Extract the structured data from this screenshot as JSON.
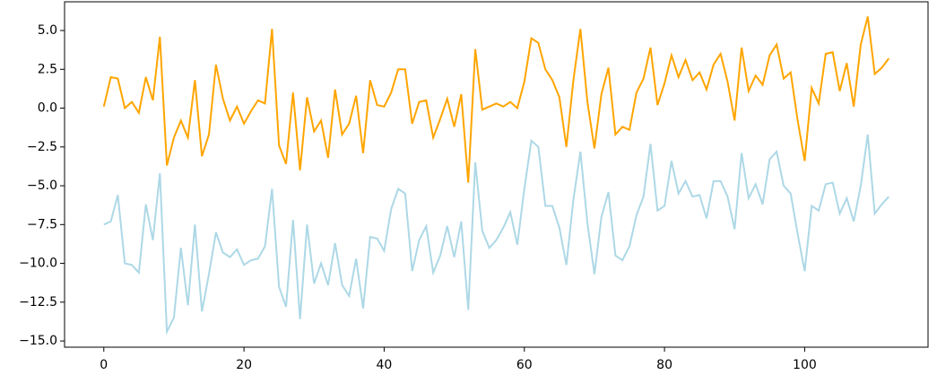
{
  "chart_data": {
    "type": "line",
    "x": [
      0,
      1,
      2,
      3,
      4,
      5,
      6,
      7,
      8,
      9,
      10,
      11,
      12,
      13,
      14,
      15,
      16,
      17,
      18,
      19,
      20,
      21,
      22,
      23,
      24,
      25,
      26,
      27,
      28,
      29,
      30,
      31,
      32,
      33,
      34,
      35,
      36,
      37,
      38,
      39,
      40,
      41,
      42,
      43,
      44,
      45,
      46,
      47,
      48,
      49,
      50,
      51,
      52,
      53,
      54,
      55,
      56,
      57,
      58,
      59,
      60,
      61,
      62,
      63,
      64,
      65,
      66,
      67,
      68,
      69,
      70,
      71,
      72,
      73,
      74,
      75,
      76,
      77,
      78,
      79,
      80,
      81,
      82,
      83,
      84,
      85,
      86,
      87,
      88,
      89,
      90,
      91,
      92,
      93,
      94,
      95,
      96,
      97,
      98,
      99,
      100,
      101,
      102,
      103,
      104,
      105,
      106,
      107,
      108,
      109,
      110,
      111,
      112
    ],
    "series": [
      {
        "color": "#ffa500",
        "values": [
          0.1,
          2.0,
          1.9,
          0.0,
          0.4,
          -0.3,
          2.0,
          0.5,
          4.6,
          -3.7,
          -1.9,
          -0.8,
          -1.9,
          1.8,
          -3.1,
          -1.7,
          2.8,
          0.6,
          -0.8,
          0.1,
          -1.0,
          -0.2,
          0.5,
          0.3,
          5.1,
          -2.4,
          -3.6,
          1.0,
          -4.0,
          0.7,
          -1.5,
          -0.8,
          -3.2,
          1.2,
          -1.7,
          -1.0,
          0.8,
          -2.9,
          1.8,
          0.2,
          0.1,
          1.0,
          2.5,
          2.5,
          -1.0,
          0.4,
          0.5,
          -1.9,
          -0.7,
          0.6,
          -1.2,
          0.9,
          -4.8,
          3.8,
          -0.1,
          0.1,
          0.3,
          0.1,
          0.4,
          0.0,
          1.7,
          4.5,
          4.2,
          2.5,
          1.8,
          0.7,
          -2.5,
          1.8,
          5.1,
          0.4,
          -2.6,
          0.9,
          2.6,
          -1.7,
          -1.2,
          -1.4,
          1.0,
          1.9,
          3.9,
          0.2,
          1.6,
          3.4,
          2.0,
          3.1,
          1.8,
          2.3,
          1.2,
          2.8,
          3.5,
          1.7,
          -0.8,
          3.9,
          1.1,
          2.1,
          1.5,
          3.4,
          4.1,
          1.9,
          2.3,
          -0.8,
          -3.4,
          1.3,
          0.3,
          3.5,
          3.6,
          1.1,
          2.9,
          0.1,
          4.1,
          5.9,
          2.2,
          2.6,
          3.2
        ]
      },
      {
        "color": "#add8e6",
        "values": [
          -7.5,
          -7.3,
          -5.6,
          -10.0,
          -10.1,
          -10.6,
          -6.2,
          -8.5,
          -4.2,
          -14.4,
          -13.5,
          -9.0,
          -12.7,
          -7.5,
          -13.1,
          -10.7,
          -8.0,
          -9.3,
          -9.6,
          -9.1,
          -10.1,
          -9.8,
          -9.7,
          -8.9,
          -5.2,
          -11.5,
          -12.8,
          -7.2,
          -13.6,
          -7.5,
          -11.3,
          -10.0,
          -11.4,
          -8.7,
          -11.4,
          -12.1,
          -9.7,
          -12.9,
          -8.3,
          -8.4,
          -9.2,
          -6.5,
          -5.2,
          -5.5,
          -10.5,
          -8.5,
          -7.6,
          -10.6,
          -9.5,
          -7.6,
          -9.6,
          -7.3,
          -13.0,
          -3.5,
          -7.9,
          -9.0,
          -8.5,
          -7.7,
          -6.7,
          -8.8,
          -5.2,
          -2.1,
          -2.5,
          -6.3,
          -6.3,
          -7.7,
          -10.1,
          -5.9,
          -2.8,
          -7.4,
          -10.7,
          -7.0,
          -5.4,
          -9.5,
          -9.8,
          -8.9,
          -6.9,
          -5.7,
          -2.3,
          -6.6,
          -6.3,
          -3.4,
          -5.5,
          -4.7,
          -5.7,
          -5.6,
          -7.1,
          -4.7,
          -4.7,
          -5.7,
          -7.8,
          -2.9,
          -5.8,
          -4.9,
          -6.2,
          -3.3,
          -2.8,
          -5.0,
          -5.5,
          -8.1,
          -10.5,
          -6.3,
          -6.6,
          -4.9,
          -4.8,
          -6.8,
          -5.8,
          -7.3,
          -5.0,
          -1.7,
          -6.8,
          -6.2,
          -5.7
        ]
      }
    ],
    "xlim": [
      -5.6,
      117.6
    ],
    "ylim": [
      -15.4,
      6.85
    ],
    "xticks": [
      0,
      20,
      40,
      60,
      80,
      100
    ],
    "yticks": [
      {
        "value": 5,
        "label": "5.0"
      },
      {
        "value": 2.5,
        "label": "2.5"
      },
      {
        "value": 0,
        "label": "0.0"
      },
      {
        "value": -2.5,
        "label": "−2.5"
      },
      {
        "value": -5,
        "label": "−5.0"
      },
      {
        "value": -7.5,
        "label": "−7.5"
      },
      {
        "value": -10,
        "label": "−10.0"
      },
      {
        "value": -12.5,
        "label": "−12.5"
      },
      {
        "value": -15,
        "label": "−15.0"
      }
    ],
    "grid": false
  }
}
